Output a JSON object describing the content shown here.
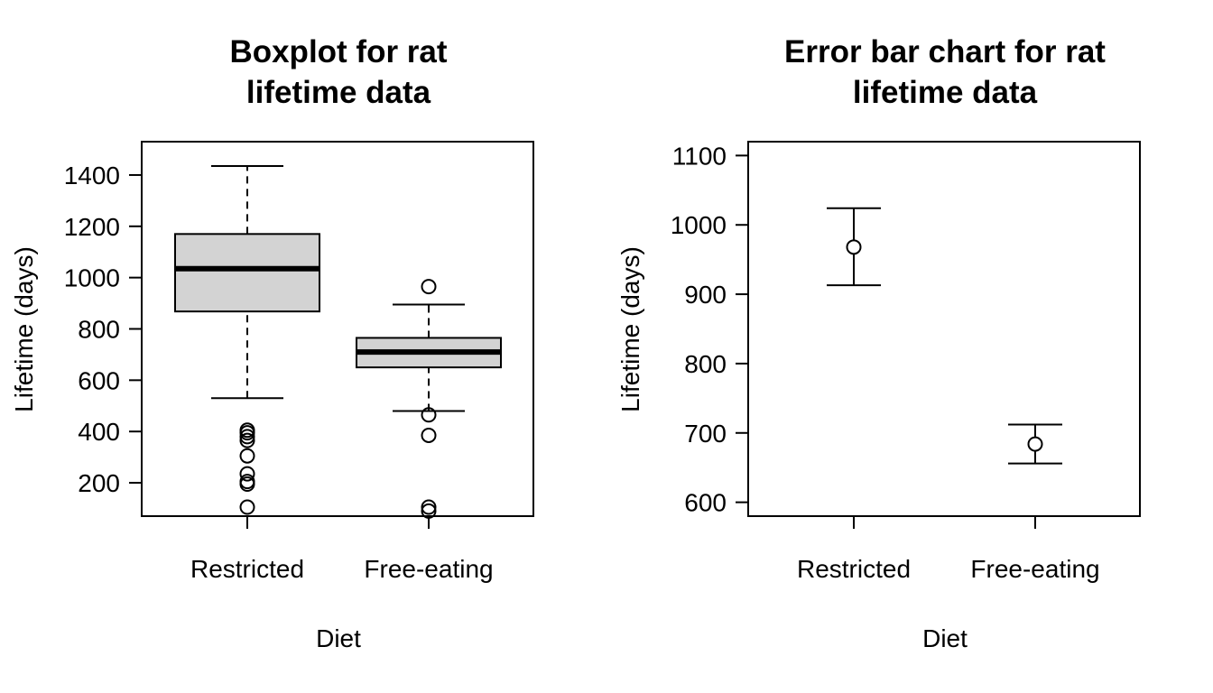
{
  "chart_data": [
    {
      "type": "box",
      "title_lines": [
        "Boxplot for rat",
        "lifetime data"
      ],
      "xlabel": "Diet",
      "ylabel": "Lifetime (days)",
      "categories": [
        "Restricted",
        "Free-eating"
      ],
      "yticks": [
        200,
        400,
        600,
        800,
        1000,
        1200,
        1400
      ],
      "ylim": [
        70,
        1530
      ],
      "boxes": [
        {
          "category": "Restricted",
          "whisker_low": 530,
          "q1": 868,
          "median": 1035,
          "q3": 1170,
          "whisker_high": 1435,
          "outliers": [
            405,
            395,
            380,
            365,
            305,
            235,
            205,
            195,
            105
          ],
          "fill": "#d3d3d3"
        },
        {
          "category": "Free-eating",
          "whisker_low": 480,
          "q1": 650,
          "median": 710,
          "q3": 765,
          "whisker_high": 895,
          "outliers": [
            965,
            465,
            385,
            105,
            90
          ],
          "fill": "#d3d3d3"
        }
      ]
    },
    {
      "type": "errorbar",
      "title_lines": [
        "Error bar chart for rat",
        "lifetime data"
      ],
      "xlabel": "Diet",
      "ylabel": "Lifetime (days)",
      "categories": [
        "Restricted",
        "Free-eating"
      ],
      "yticks": [
        600,
        700,
        800,
        900,
        1000,
        1100
      ],
      "ylim": [
        580,
        1120
      ],
      "points": [
        {
          "category": "Restricted",
          "mean": 968,
          "lower": 913,
          "upper": 1024
        },
        {
          "category": "Free-eating",
          "mean": 684,
          "lower": 656,
          "upper": 712
        }
      ]
    }
  ]
}
